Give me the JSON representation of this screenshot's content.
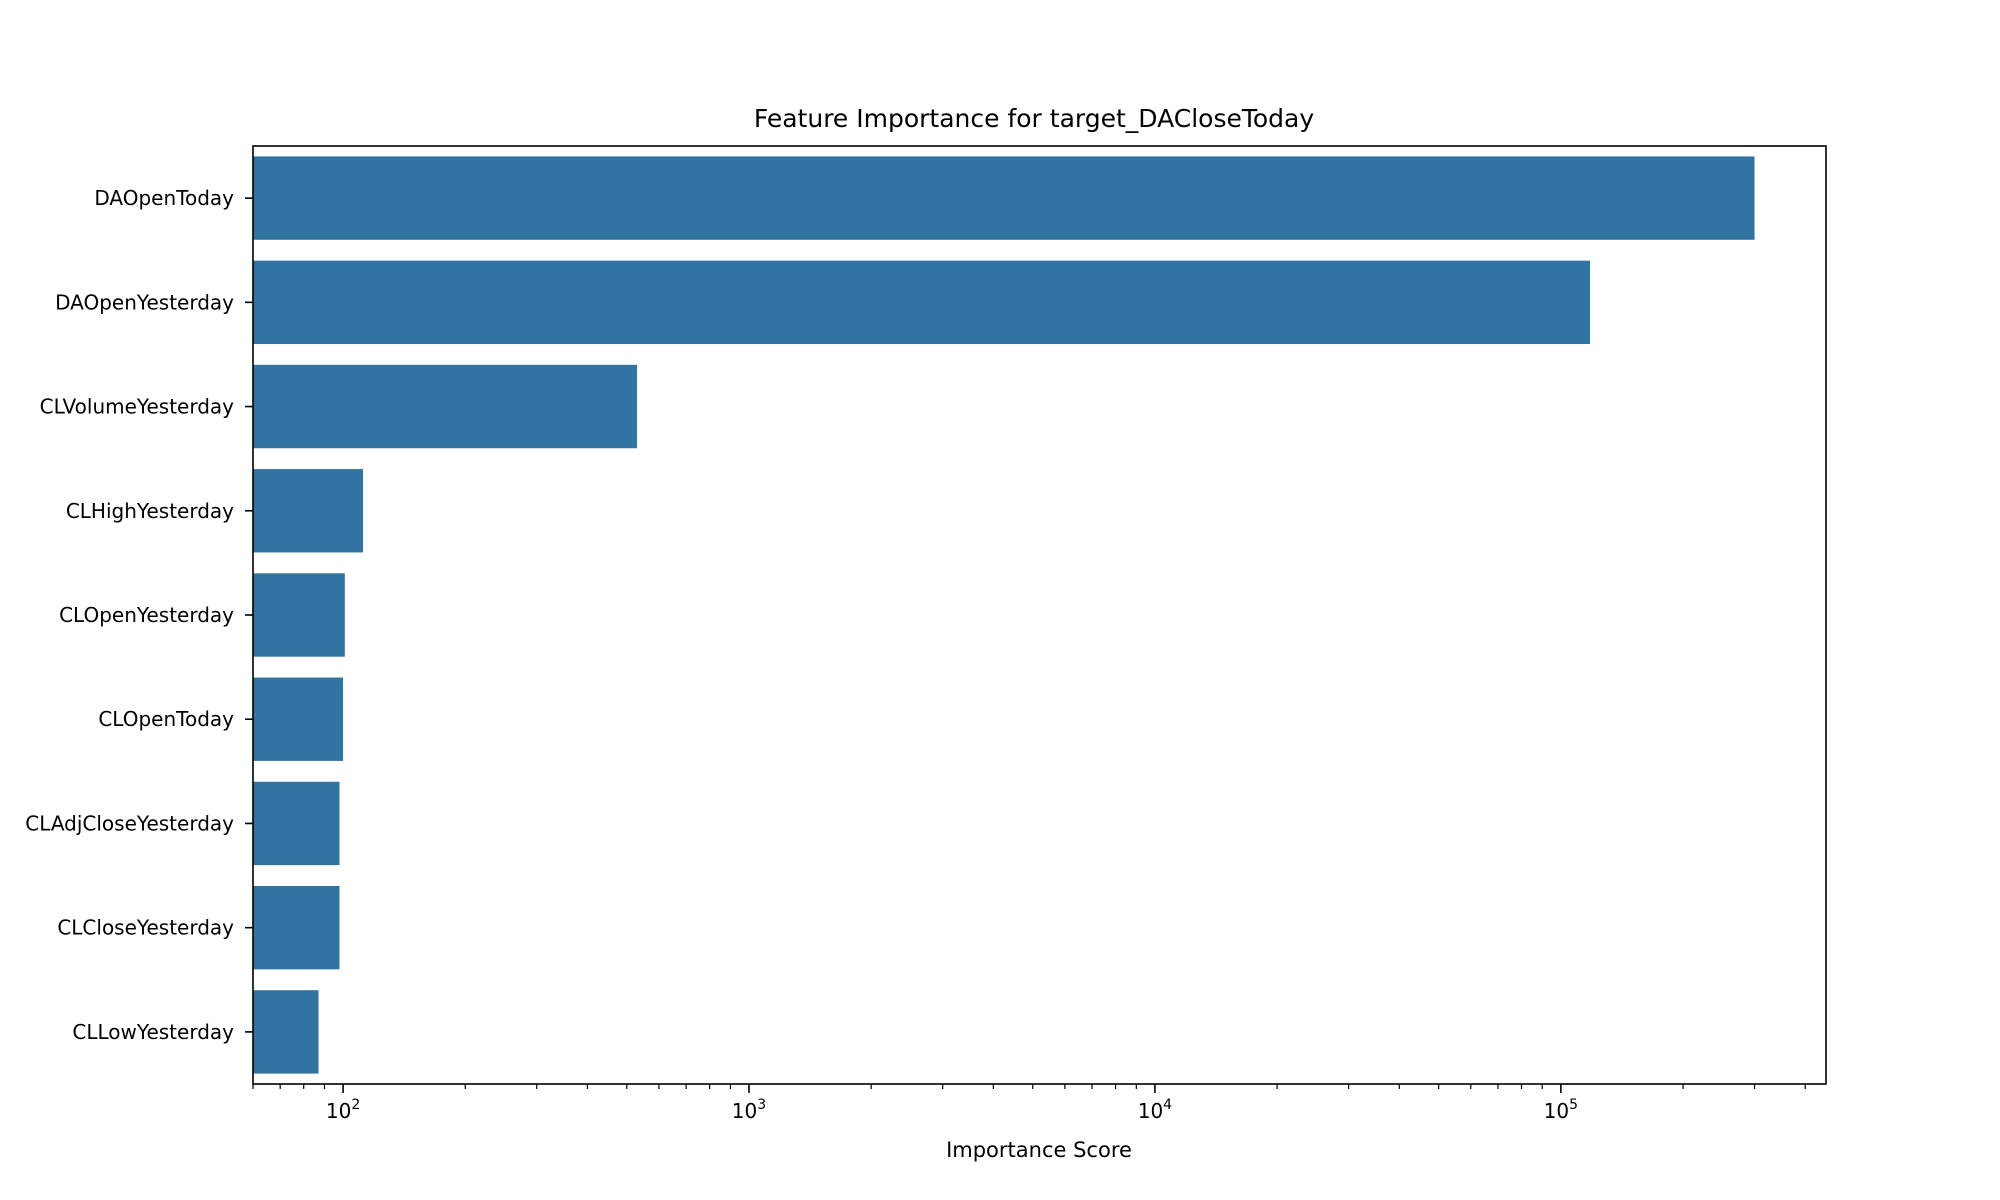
{
  "chart_data": {
    "type": "bar",
    "orientation": "horizontal",
    "title": "Feature Importance for target_DACloseToday",
    "xlabel": "Importance Score",
    "ylabel": "",
    "xscale": "log",
    "xlim": [
      60,
      450000
    ],
    "xticks": [
      {
        "value": 100,
        "base": "10",
        "exp": "2"
      },
      {
        "value": 1000,
        "base": "10",
        "exp": "3"
      },
      {
        "value": 10000,
        "base": "10",
        "exp": "4"
      },
      {
        "value": 100000,
        "base": "10",
        "exp": "5"
      }
    ],
    "categories": [
      "DAOpenToday",
      "DAOpenYesterday",
      "CLVolumeYesterday",
      "CLHighYesterday",
      "CLOpenYesterday",
      "CLOpenToday",
      "CLAdjCloseYesterday",
      "CLCloseYesterday",
      "CLLowYesterday"
    ],
    "values": [
      300000,
      118000,
      530,
      112,
      101,
      100,
      98,
      98,
      87
    ],
    "bar_color": "#3274a1",
    "grid": false,
    "legend": "none"
  }
}
